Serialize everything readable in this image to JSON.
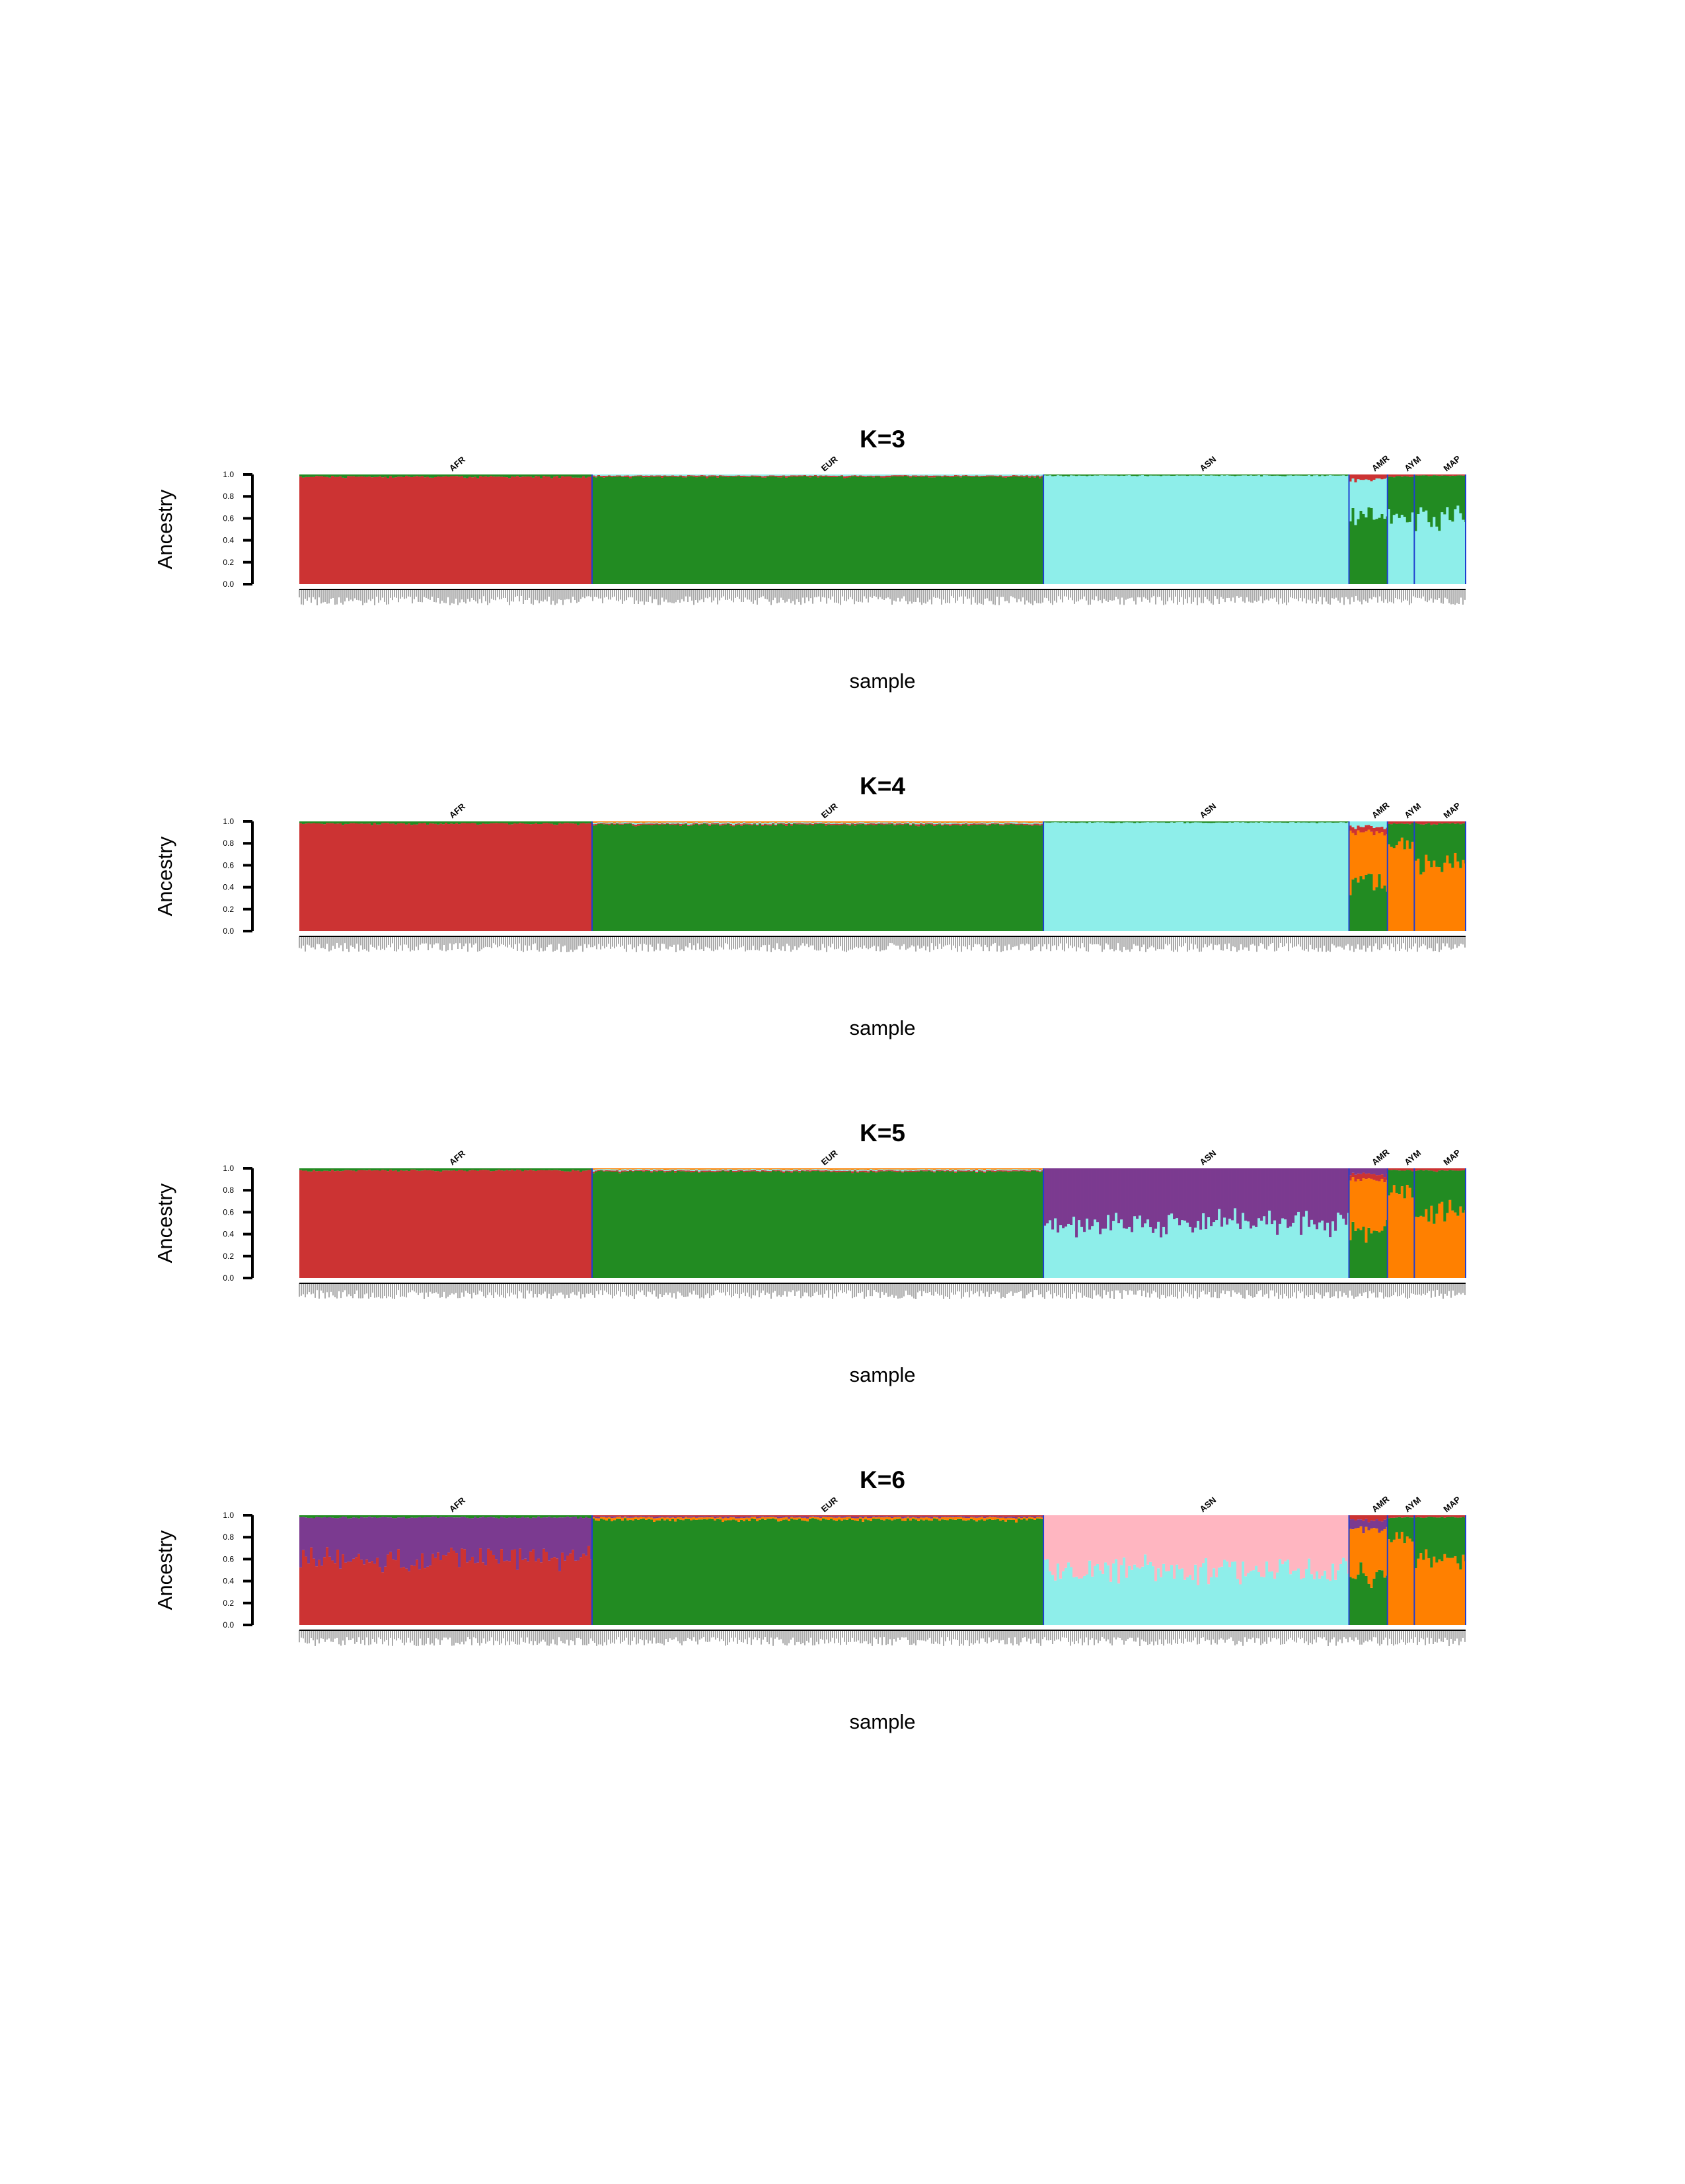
{
  "palette": {
    "red": "#cc3333",
    "green": "#228b22",
    "cyan": "#8eeeea",
    "orange": "#ff8000",
    "purple": "#7b3a90",
    "pink": "#ffb6c1",
    "divider": "#1f3fd0"
  },
  "chart_data": [
    {
      "type": "bar",
      "stacked": true,
      "title": "K=3",
      "xlabel": "sample",
      "ylabel": "Ancestry",
      "ylim": [
        0,
        1
      ],
      "yticks": [
        "0.0",
        "0.2",
        "0.4",
        "0.6",
        "0.8",
        "1.0"
      ],
      "populations": [
        {
          "name": "AFR",
          "share": 0.251,
          "components": {
            "red": 0.98,
            "green": 0.02
          }
        },
        {
          "name": "EUR",
          "share": 0.387,
          "components": {
            "green": 0.98,
            "red": 0.01,
            "cyan": 0.01
          }
        },
        {
          "name": "ASN",
          "share": 0.262,
          "components": {
            "cyan": 0.99,
            "green": 0.01
          }
        },
        {
          "name": "AMR",
          "share": 0.033,
          "components": {
            "green": 0.62,
            "cyan": 0.33,
            "red": 0.05
          }
        },
        {
          "name": "AYM",
          "share": 0.023,
          "components": {
            "cyan": 0.62,
            "green": 0.36,
            "red": 0.02
          }
        },
        {
          "name": "MAP",
          "share": 0.044,
          "components": {
            "cyan": 0.62,
            "green": 0.37,
            "red": 0.01
          }
        }
      ]
    },
    {
      "type": "bar",
      "stacked": true,
      "title": "K=4",
      "xlabel": "sample",
      "ylabel": "Ancestry",
      "ylim": [
        0,
        1
      ],
      "yticks": [
        "0.0",
        "0.2",
        "0.4",
        "0.6",
        "0.8",
        "1.0"
      ],
      "populations": [
        {
          "name": "AFR",
          "share": 0.251,
          "components": {
            "red": 0.98,
            "green": 0.02
          }
        },
        {
          "name": "EUR",
          "share": 0.387,
          "components": {
            "green": 0.97,
            "red": 0.01,
            "cyan": 0.01,
            "orange": 0.01
          }
        },
        {
          "name": "ASN",
          "share": 0.262,
          "components": {
            "cyan": 0.99,
            "green": 0.01
          }
        },
        {
          "name": "AMR",
          "share": 0.033,
          "components": {
            "green": 0.45,
            "orange": 0.45,
            "red": 0.05,
            "cyan": 0.05
          }
        },
        {
          "name": "AYM",
          "share": 0.023,
          "components": {
            "orange": 0.78,
            "green": 0.2,
            "red": 0.02
          }
        },
        {
          "name": "MAP",
          "share": 0.044,
          "components": {
            "orange": 0.62,
            "green": 0.36,
            "red": 0.02
          }
        }
      ]
    },
    {
      "type": "bar",
      "stacked": true,
      "title": "K=5",
      "xlabel": "sample",
      "ylabel": "Ancestry",
      "ylim": [
        0,
        1
      ],
      "yticks": [
        "0.0",
        "0.2",
        "0.4",
        "0.6",
        "0.8",
        "1.0"
      ],
      "populations": [
        {
          "name": "AFR",
          "share": 0.251,
          "components": {
            "red": 0.98,
            "green": 0.02
          }
        },
        {
          "name": "EUR",
          "share": 0.387,
          "components": {
            "green": 0.97,
            "red": 0.01,
            "cyan": 0.01,
            "orange": 0.01
          }
        },
        {
          "name": "ASN",
          "share": 0.262,
          "components": {
            "cyan": 0.5,
            "purple": 0.5
          }
        },
        {
          "name": "AMR",
          "share": 0.033,
          "components": {
            "green": 0.45,
            "orange": 0.45,
            "red": 0.05,
            "purple": 0.05
          }
        },
        {
          "name": "AYM",
          "share": 0.023,
          "components": {
            "orange": 0.78,
            "green": 0.2,
            "red": 0.02
          }
        },
        {
          "name": "MAP",
          "share": 0.044,
          "components": {
            "orange": 0.62,
            "green": 0.36,
            "red": 0.02
          }
        }
      ]
    },
    {
      "type": "bar",
      "stacked": true,
      "title": "K=6",
      "xlabel": "sample",
      "ylabel": "Ancestry",
      "ylim": [
        0,
        1
      ],
      "yticks": [
        "0.0",
        "0.2",
        "0.4",
        "0.6",
        "0.8",
        "1.0"
      ],
      "populations": [
        {
          "name": "AFR",
          "share": 0.251,
          "components": {
            "red": 0.6,
            "purple": 0.38,
            "green": 0.02
          }
        },
        {
          "name": "EUR",
          "share": 0.387,
          "components": {
            "green": 0.96,
            "orange": 0.02,
            "purple": 0.01,
            "red": 0.01
          }
        },
        {
          "name": "ASN",
          "share": 0.262,
          "components": {
            "cyan": 0.5,
            "pink": 0.5
          }
        },
        {
          "name": "AMR",
          "share": 0.033,
          "components": {
            "green": 0.45,
            "orange": 0.42,
            "purple": 0.08,
            "red": 0.05
          }
        },
        {
          "name": "AYM",
          "share": 0.023,
          "components": {
            "orange": 0.78,
            "green": 0.2,
            "red": 0.02
          }
        },
        {
          "name": "MAP",
          "share": 0.044,
          "components": {
            "orange": 0.62,
            "green": 0.36,
            "red": 0.02
          }
        }
      ]
    }
  ]
}
